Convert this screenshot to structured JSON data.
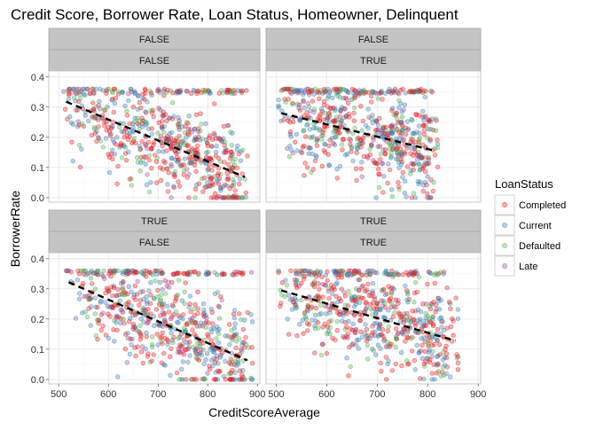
{
  "chart_data": {
    "type": "scatter",
    "title": "Credit Score, Borrower Rate, Loan Status, Homeowner, Delinquent",
    "xlabel": "CreditScoreAverage",
    "ylabel": "BorrowerRate",
    "x_ticks": [
      "500",
      "600",
      "700",
      "800",
      "900"
    ],
    "y_ticks": [
      "0.0",
      "0.1",
      "0.2",
      "0.3",
      "0.4"
    ],
    "xlim": [
      480,
      905
    ],
    "ylim": [
      -0.015,
      0.42
    ],
    "grid": true,
    "legend": {
      "title": "LoanStatus",
      "position": "right",
      "entries": [
        "Completed",
        "Current",
        "Defaulted",
        "Late"
      ],
      "colors": [
        "#E41A1C",
        "#377EB8",
        "#4DAF4A",
        "#984EA3"
      ]
    },
    "panels": [
      {
        "strip_top": "FALSE",
        "strip_bottom": "FALSE",
        "x_range": [
          510,
          880
        ],
        "trend": {
          "x": [
            515,
            875
          ],
          "y": [
            0.318,
            0.068
          ]
        }
      },
      {
        "strip_top": "FALSE",
        "strip_bottom": "TRUE",
        "x_range": [
          505,
          820
        ],
        "trend": {
          "x": [
            510,
            815
          ],
          "y": [
            0.28,
            0.155
          ]
        }
      },
      {
        "strip_top": "TRUE",
        "strip_bottom": "FALSE",
        "x_range": [
          515,
          890
        ],
        "trend": {
          "x": [
            520,
            880
          ],
          "y": [
            0.322,
            0.063
          ]
        }
      },
      {
        "strip_top": "TRUE",
        "strip_bottom": "TRUE",
        "x_range": [
          505,
          860
        ],
        "trend": {
          "x": [
            510,
            855
          ],
          "y": [
            0.295,
            0.128
          ]
        }
      }
    ]
  }
}
